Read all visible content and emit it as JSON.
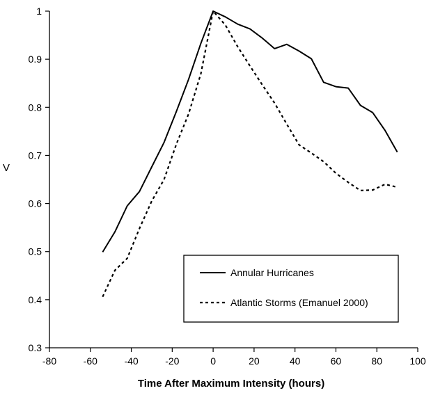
{
  "chart_data": {
    "type": "line",
    "title": "",
    "xlabel": "Time After Maximum Intensity (hours)",
    "ylabel": "V",
    "xlim": [
      -80,
      100
    ],
    "ylim": [
      0.3,
      1
    ],
    "xticks": [
      -80,
      -60,
      -40,
      -20,
      0,
      20,
      40,
      60,
      80,
      100
    ],
    "yticks": [
      0.3,
      0.4,
      0.5,
      0.6,
      0.7,
      0.8,
      0.9,
      1
    ],
    "ytick_labels": [
      "0.3",
      "0.4",
      "0.5",
      "0.6",
      "0.7",
      "0.8",
      "0.9",
      "1"
    ],
    "grid": false,
    "legend_position": "lower-right",
    "series": [
      {
        "name": "Annular Hurricanes",
        "style": "solid",
        "color": "#000000",
        "x": [
          -54,
          -48,
          -42,
          -36,
          -30,
          -24,
          -18,
          -12,
          -6,
          0,
          6,
          12,
          18,
          24,
          30,
          36,
          42,
          48,
          54,
          60,
          66,
          72,
          78,
          84,
          90
        ],
        "y": [
          0.499,
          0.541,
          0.595,
          0.625,
          0.676,
          0.727,
          0.791,
          0.858,
          0.933,
          1.0,
          0.988,
          0.973,
          0.963,
          0.944,
          0.922,
          0.931,
          0.917,
          0.901,
          0.852,
          0.843,
          0.84,
          0.804,
          0.789,
          0.752,
          0.707
        ]
      },
      {
        "name": "Atlantic Storms (Emanuel 2000)",
        "style": "dashed",
        "color": "#000000",
        "x": [
          -54,
          -48,
          -42,
          -36,
          -30,
          -24,
          -18,
          -12,
          -6,
          0,
          6,
          12,
          18,
          24,
          30,
          36,
          42,
          48,
          54,
          60,
          66,
          72,
          78,
          84,
          90
        ],
        "y": [
          0.406,
          0.461,
          0.486,
          0.548,
          0.605,
          0.65,
          0.723,
          0.786,
          0.87,
          1.0,
          0.971,
          0.926,
          0.886,
          0.847,
          0.809,
          0.765,
          0.722,
          0.705,
          0.687,
          0.663,
          0.644,
          0.627,
          0.628,
          0.64,
          0.634
        ]
      }
    ]
  }
}
